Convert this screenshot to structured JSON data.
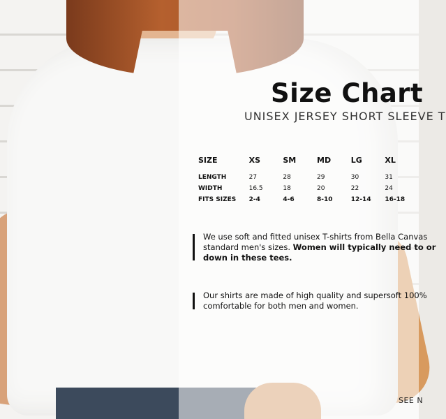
{
  "title": "Size Chart",
  "subtitle": "UNISEX JERSEY SHORT SLEEVE T",
  "table": {
    "headers": [
      "SIZE",
      "XS",
      "SM",
      "MD",
      "LG",
      "XL"
    ],
    "rows": [
      {
        "label": "LENGTH",
        "values": [
          "27",
          "28",
          "29",
          "30",
          "31"
        ]
      },
      {
        "label": "WIDTH",
        "values": [
          "16.5",
          "18",
          "20",
          "22",
          "24"
        ]
      },
      {
        "label": "FITS SIZES",
        "values": [
          "2-4",
          "4-6",
          "8-10",
          "12-14",
          "16-18"
        ]
      }
    ]
  },
  "notes": [
    {
      "line1": "We use soft and fitted unisex T-shirts from Bella Canvas",
      "line2_plain": "standard men's sizes. ",
      "line2_bold": "Women will typically need to or",
      "line3_bold": "down in these tees."
    },
    {
      "line1": "Our shirts are made of high quality and supersoft 100%",
      "line2": "comfortable for both men and women."
    }
  ],
  "see_more": "SEE N"
}
